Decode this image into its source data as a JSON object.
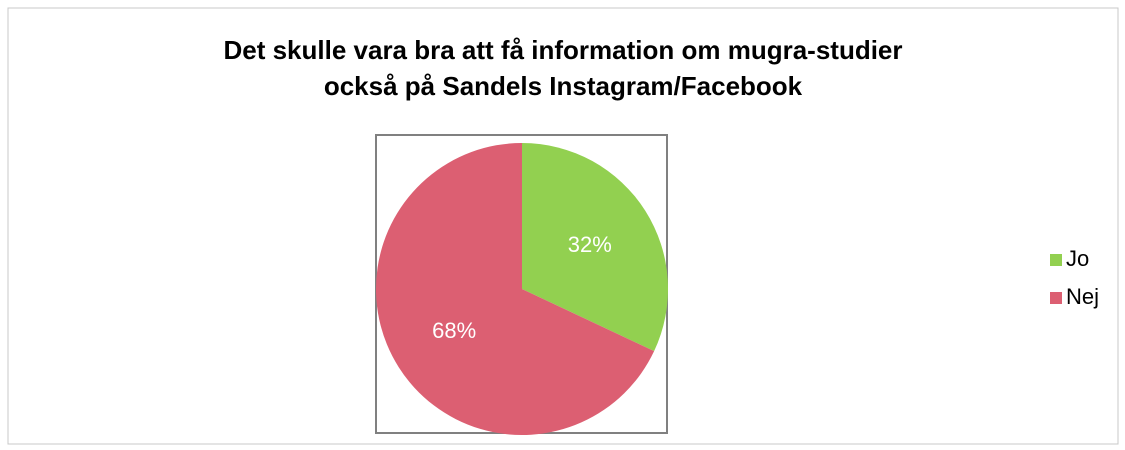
{
  "chart_data": {
    "type": "pie",
    "title": [
      "Det skulle vara bra att få information om mugra-studier",
      "också på Sandels Instagram/Facebook"
    ],
    "categories": [
      "Jo",
      "Nej"
    ],
    "values": [
      32,
      68
    ],
    "value_labels": [
      "32%",
      "68%"
    ],
    "colors": [
      "#92d050",
      "#dc5f72"
    ],
    "legend": "right"
  }
}
